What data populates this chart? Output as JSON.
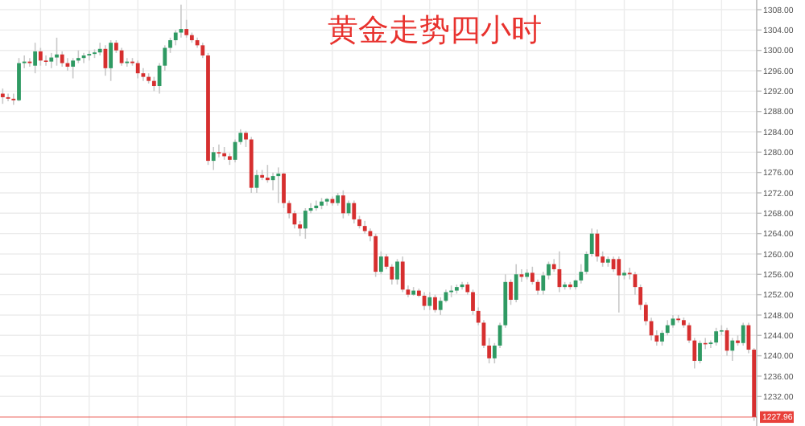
{
  "chart_data": {
    "type": "candlestick",
    "title": "黄金走势四小时",
    "categories": [
      null,
      null,
      null,
      null,
      null,
      null,
      null,
      null,
      null,
      null,
      null,
      null,
      null,
      null,
      null,
      null,
      null,
      null,
      null,
      null,
      null,
      null,
      null,
      null,
      null,
      null,
      null,
      null,
      null,
      null,
      null,
      null,
      null,
      null,
      null,
      null,
      null,
      null,
      null,
      null,
      null,
      null,
      null,
      null,
      null,
      null,
      null,
      null,
      null,
      null,
      null,
      null,
      null,
      null,
      null,
      null,
      null,
      null,
      null,
      null,
      null,
      null,
      null,
      null,
      null,
      null,
      null,
      null,
      null,
      null,
      null,
      null,
      null,
      null,
      null,
      null,
      null,
      null,
      null,
      null,
      null,
      null,
      null,
      null,
      null,
      null,
      null,
      null,
      null,
      null,
      null,
      null,
      null,
      null,
      null,
      null,
      null,
      null,
      null,
      null,
      null,
      null,
      null,
      null,
      null,
      null,
      null,
      null,
      null,
      null,
      null,
      null,
      null,
      null,
      null,
      null,
      null,
      null,
      null,
      null,
      null,
      null,
      null,
      null,
      null,
      null,
      null,
      null,
      null,
      null,
      null,
      null,
      null,
      null,
      null,
      null,
      null,
      null,
      null,
      null
    ],
    "ohlc": [
      [
        1291.5,
        1292.5,
        1289.5,
        1290.8
      ],
      [
        1290.8,
        1291.5,
        1290,
        1290.5
      ],
      [
        1290.5,
        1291.5,
        1289.3,
        1290.2
      ],
      [
        1290.2,
        1298.5,
        1290,
        1297.5
      ],
      [
        1297.5,
        1299,
        1296.5,
        1297.8
      ],
      [
        1297.8,
        1298.5,
        1296.8,
        1297.5
      ],
      [
        1297,
        1301.5,
        1295.5,
        1299.8
      ],
      [
        1299.8,
        1300.5,
        1297,
        1298
      ],
      [
        1298,
        1299,
        1297,
        1297.8
      ],
      [
        1297.8,
        1299.5,
        1296.5,
        1298.6
      ],
      [
        1298.6,
        1302.5,
        1297,
        1299.2
      ],
      [
        1299.2,
        1299.8,
        1296.8,
        1297.5
      ],
      [
        1297.5,
        1298.5,
        1296,
        1296.8
      ],
      [
        1296.8,
        1298.5,
        1294.5,
        1298
      ],
      [
        1298,
        1300,
        1297.5,
        1298.5
      ],
      [
        1298.5,
        1299.5,
        1297.5,
        1299
      ],
      [
        1299,
        1300,
        1298,
        1299.3
      ],
      [
        1299.3,
        1300.2,
        1298.5,
        1299.6
      ],
      [
        1299.6,
        1301.5,
        1299,
        1300.3
      ],
      [
        1300.3,
        1301,
        1295,
        1296.5
      ],
      [
        1296.5,
        1302,
        1294,
        1301.5
      ],
      [
        1301.5,
        1302,
        1299.5,
        1300
      ],
      [
        1300,
        1300.5,
        1297,
        1297.5
      ],
      [
        1297.5,
        1298.5,
        1296.8,
        1297.8
      ],
      [
        1297.8,
        1298.5,
        1297,
        1297.5
      ],
      [
        1297.5,
        1298,
        1294.5,
        1295.5
      ],
      [
        1295.5,
        1296.5,
        1294,
        1294.8
      ],
      [
        1294.8,
        1295.5,
        1293.5,
        1294
      ],
      [
        1294,
        1294.8,
        1292,
        1293
      ],
      [
        1293,
        1297.5,
        1291.5,
        1297
      ],
      [
        1297,
        1301,
        1296,
        1300.5
      ],
      [
        1300.5,
        1302.5,
        1299.5,
        1302
      ],
      [
        1302,
        1304,
        1301,
        1303.5
      ],
      [
        1303.5,
        1309,
        1302.5,
        1304.2
      ],
      [
        1304.2,
        1306,
        1302.5,
        1303
      ],
      [
        1303,
        1303.5,
        1301.5,
        1302
      ],
      [
        1302,
        1302.5,
        1300.5,
        1301
      ],
      [
        1301,
        1301.5,
        1298.5,
        1299
      ],
      [
        1299,
        1299.5,
        1277.5,
        1278.3
      ],
      [
        1278.3,
        1281,
        1276.5,
        1280
      ],
      [
        1280,
        1281.5,
        1279,
        1279.8
      ],
      [
        1279.8,
        1281,
        1278.5,
        1279.2
      ],
      [
        1279.2,
        1279.8,
        1277.5,
        1278.5
      ],
      [
        1278.5,
        1282.5,
        1278,
        1282
      ],
      [
        1282,
        1284.5,
        1281.5,
        1283.8
      ],
      [
        1283.8,
        1284.2,
        1281,
        1282.5
      ],
      [
        1282.5,
        1283,
        1272,
        1273
      ],
      [
        1273,
        1276.5,
        1272,
        1275.5
      ],
      [
        1275.5,
        1276.5,
        1274.5,
        1275
      ],
      [
        1275,
        1277.5,
        1274,
        1274.5
      ],
      [
        1274.5,
        1276,
        1272.5,
        1275.3
      ],
      [
        1275.3,
        1277,
        1270,
        1275.8
      ],
      [
        1275.8,
        1276,
        1269,
        1270
      ],
      [
        1270,
        1270.5,
        1267,
        1268
      ],
      [
        1268,
        1268.5,
        1265,
        1265.8
      ],
      [
        1265.8,
        1266.5,
        1263.5,
        1265
      ],
      [
        1265,
        1269,
        1263,
        1268.5
      ],
      [
        1268.5,
        1270,
        1268,
        1269
      ],
      [
        1269,
        1270.5,
        1268.5,
        1269.5
      ],
      [
        1269.5,
        1271,
        1268.8,
        1270.3
      ],
      [
        1270.3,
        1271,
        1269.5,
        1270.8
      ],
      [
        1270.8,
        1271.3,
        1269.5,
        1270
      ],
      [
        1270,
        1272,
        1269.5,
        1271.5
      ],
      [
        1271.5,
        1272.5,
        1267,
        1268
      ],
      [
        1268,
        1270.5,
        1267.5,
        1270
      ],
      [
        1270,
        1270.5,
        1266,
        1266.8
      ],
      [
        1266.8,
        1267.5,
        1265,
        1265.5
      ],
      [
        1265.5,
        1266.5,
        1264,
        1264.5
      ],
      [
        1264.5,
        1265,
        1262.5,
        1263.5
      ],
      [
        1263.5,
        1264,
        1255.5,
        1256.5
      ],
      [
        1256.5,
        1260.5,
        1256,
        1259.5
      ],
      [
        1259.5,
        1260,
        1257,
        1257.5
      ],
      [
        1257.5,
        1258,
        1254,
        1255
      ],
      [
        1255,
        1259,
        1254,
        1258.5
      ],
      [
        1258.5,
        1259.5,
        1252.5,
        1253
      ],
      [
        1253,
        1253.8,
        1251.5,
        1252
      ],
      [
        1252,
        1253.5,
        1251.8,
        1252.8
      ],
      [
        1252.8,
        1253.2,
        1251.5,
        1251.8
      ],
      [
        1251.8,
        1252.5,
        1249,
        1249.8
      ],
      [
        1249.8,
        1252.5,
        1249,
        1251.5
      ],
      [
        1251.5,
        1252,
        1248.5,
        1249
      ],
      [
        1249,
        1251.5,
        1248,
        1250.8
      ],
      [
        1250.8,
        1253,
        1250.5,
        1252.5
      ],
      [
        1252.5,
        1253.8,
        1251.5,
        1252.8
      ],
      [
        1252.8,
        1254,
        1252.2,
        1253.5
      ],
      [
        1253.5,
        1254.5,
        1253,
        1254
      ],
      [
        1254,
        1254.5,
        1252,
        1252.5
      ],
      [
        1252.5,
        1253,
        1248,
        1248.8
      ],
      [
        1248.8,
        1249.5,
        1246,
        1246.5
      ],
      [
        1246.5,
        1247,
        1241.5,
        1242
      ],
      [
        1242,
        1243.5,
        1238.5,
        1239.5
      ],
      [
        1239.5,
        1242.5,
        1238.5,
        1242
      ],
      [
        1242,
        1246.5,
        1241.5,
        1246
      ],
      [
        1246,
        1256,
        1245.5,
        1254.5
      ],
      [
        1254.5,
        1255,
        1250,
        1251
      ],
      [
        1251,
        1258,
        1250.5,
        1256
      ],
      [
        1256,
        1257,
        1254.5,
        1255.5
      ],
      [
        1255.5,
        1257,
        1255,
        1256.3
      ],
      [
        1256.3,
        1257.5,
        1254,
        1254.5
      ],
      [
        1254.5,
        1255,
        1252,
        1252.8
      ],
      [
        1252.8,
        1256.5,
        1252,
        1255.8
      ],
      [
        1255.8,
        1258.5,
        1255,
        1258
      ],
      [
        1258,
        1259,
        1256.5,
        1257
      ],
      [
        1257,
        1260.5,
        1252.5,
        1253.5
      ],
      [
        1253.5,
        1254.5,
        1253,
        1254
      ],
      [
        1254,
        1254.5,
        1253,
        1253.5
      ],
      [
        1253.5,
        1255,
        1253,
        1254.8
      ],
      [
        1254.8,
        1258,
        1254.2,
        1256.5
      ],
      [
        1256.5,
        1260.5,
        1256,
        1260
      ],
      [
        1260,
        1265,
        1259.5,
        1264
      ],
      [
        1264,
        1264.8,
        1258.5,
        1259.5
      ],
      [
        1259.5,
        1260.5,
        1257.5,
        1258.3
      ],
      [
        1258.3,
        1259.5,
        1257.5,
        1259
      ],
      [
        1259,
        1259.5,
        1256.5,
        1257
      ],
      [
        1259,
        1259.5,
        1248.5,
        1255.8
      ],
      [
        1255.8,
        1256.8,
        1255,
        1256.3
      ],
      [
        1256.3,
        1257.3,
        1255,
        1256
      ],
      [
        1256,
        1256.5,
        1252,
        1253.5
      ],
      [
        1253.5,
        1254,
        1249,
        1250
      ],
      [
        1250,
        1250.5,
        1246,
        1246.8
      ],
      [
        1246.8,
        1247.5,
        1243,
        1244
      ],
      [
        1244,
        1245,
        1242,
        1242.8
      ],
      [
        1242.8,
        1245,
        1242,
        1244.5
      ],
      [
        1244.5,
        1247,
        1244,
        1246
      ],
      [
        1246,
        1248,
        1245.5,
        1247.3
      ],
      [
        1247.3,
        1248,
        1246.5,
        1247
      ],
      [
        1247,
        1247.5,
        1245.5,
        1246
      ],
      [
        1246,
        1246.5,
        1242.5,
        1243
      ],
      [
        1243,
        1243.5,
        1237.5,
        1239
      ],
      [
        1239,
        1243,
        1238.5,
        1242.5
      ],
      [
        1242.5,
        1243.5,
        1241.3,
        1242.3
      ],
      [
        1242.3,
        1243,
        1241.5,
        1242.6
      ],
      [
        1242.6,
        1245.5,
        1242,
        1244.8
      ],
      [
        1244.8,
        1246,
        1244,
        1245
      ],
      [
        1245,
        1245.5,
        1240,
        1241
      ],
      [
        1241,
        1243.5,
        1239,
        1243
      ],
      [
        1243,
        1244,
        1242,
        1242.5
      ],
      [
        1242.5,
        1246.5,
        1242,
        1246
      ],
      [
        1246,
        1246.5,
        1240.5,
        1241.2
      ],
      [
        1241.2,
        1241.5,
        1227.2,
        1227.96
      ]
    ],
    "ylim": [
      1226.2,
      1309.9
    ],
    "yticks": [
      {
        "value": 1232,
        "label": "1232.00"
      },
      {
        "value": 1236,
        "label": "1236.00"
      },
      {
        "value": 1240,
        "label": "1240.00"
      },
      {
        "value": 1244,
        "label": "1244.00"
      },
      {
        "value": 1248,
        "label": "1248.00"
      },
      {
        "value": 1252,
        "label": "1252.00"
      },
      {
        "value": 1256,
        "label": "1256.00"
      },
      {
        "value": 1260,
        "label": "1260.00"
      },
      {
        "value": 1264,
        "label": "1264.00"
      },
      {
        "value": 1268,
        "label": "1268.00"
      },
      {
        "value": 1272,
        "label": "1272.00"
      },
      {
        "value": 1276,
        "label": "1276.00"
      },
      {
        "value": 1280,
        "label": "1280.00"
      },
      {
        "value": 1284,
        "label": "1284.00"
      },
      {
        "value": 1288,
        "label": "1288.00"
      },
      {
        "value": 1292,
        "label": "1292.00"
      },
      {
        "value": 1296,
        "label": "1296.00"
      },
      {
        "value": 1300,
        "label": "1300.00"
      },
      {
        "value": 1304,
        "label": "1304.00"
      },
      {
        "value": 1308,
        "label": "1308.00"
      }
    ],
    "ref_lines": [
      {
        "axis": "y",
        "value": 1227.96,
        "label": "1227.96",
        "color": "#e8403a"
      }
    ],
    "grid": true
  }
}
